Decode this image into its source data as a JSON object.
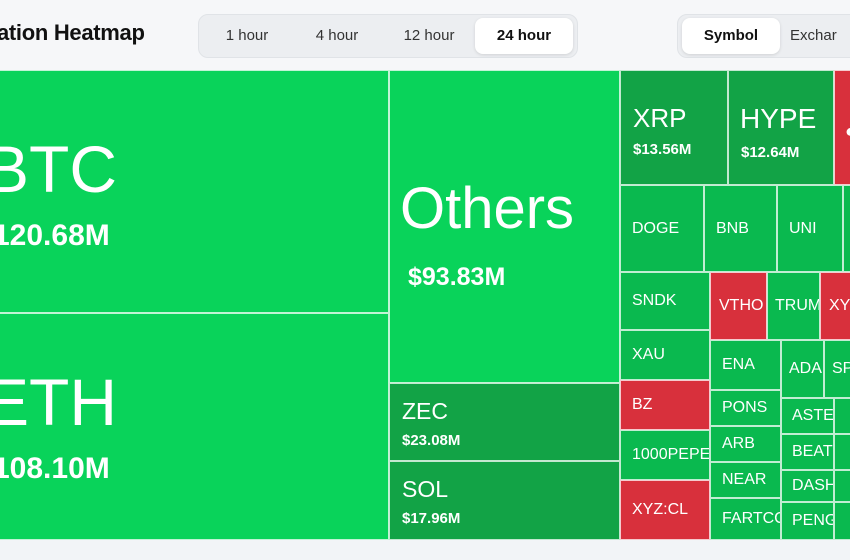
{
  "header": {
    "title": "idation Heatmap",
    "timeframes": [
      {
        "label": "1 hour"
      },
      {
        "label": "4 hour"
      },
      {
        "label": "12 hour"
      },
      {
        "label": "24 hour",
        "active": true
      }
    ],
    "groupings": [
      {
        "label": "Symbol",
        "active": true
      },
      {
        "label": "Exchar"
      }
    ]
  },
  "colors": {
    "green_bright": "#09d35a",
    "green_mid": "#0ab94f",
    "green_dark": "#12a346",
    "red": "#d8303c"
  },
  "tiles": {
    "btc": {
      "symbol": "BTC",
      "value": "120.68M"
    },
    "eth": {
      "symbol": "ETH",
      "value": "108.10M"
    },
    "others": {
      "symbol": "Others",
      "value": "$93.83M"
    },
    "zec": {
      "symbol": "ZEC",
      "value": "$23.08M"
    },
    "sol": {
      "symbol": "SOL",
      "value": "$17.96M"
    },
    "xrp": {
      "symbol": "XRP",
      "value": "$13.56M"
    },
    "hype": {
      "symbol": "HYPE",
      "value": "$12.64M"
    },
    "doge": {
      "symbol": "DOGE"
    },
    "bnb": {
      "symbol": "BNB"
    },
    "uni": {
      "symbol": "UNI"
    },
    "sndk": {
      "symbol": "SNDK"
    },
    "vtho": {
      "symbol": "VTHO"
    },
    "trum": {
      "symbol": "TRUM"
    },
    "xyz": {
      "symbol": "XYZ"
    },
    "xau": {
      "symbol": "XAU"
    },
    "ena": {
      "symbol": "ENA"
    },
    "ada": {
      "symbol": "ADA"
    },
    "sp": {
      "symbol": "SP"
    },
    "bz": {
      "symbol": "BZ"
    },
    "pons": {
      "symbol": "PONS"
    },
    "aste": {
      "symbol": "ASTE"
    },
    "arb": {
      "symbol": "ARB"
    },
    "beat": {
      "symbol": "BEAT"
    },
    "pepe1000": {
      "symbol": "1000PEPE"
    },
    "near": {
      "symbol": "NEAR"
    },
    "dash": {
      "symbol": "DASH"
    },
    "xyzcl": {
      "symbol": "XYZ:CL"
    },
    "fartco": {
      "symbol": "FARTCC"
    },
    "peng": {
      "symbol": "PENG"
    }
  }
}
